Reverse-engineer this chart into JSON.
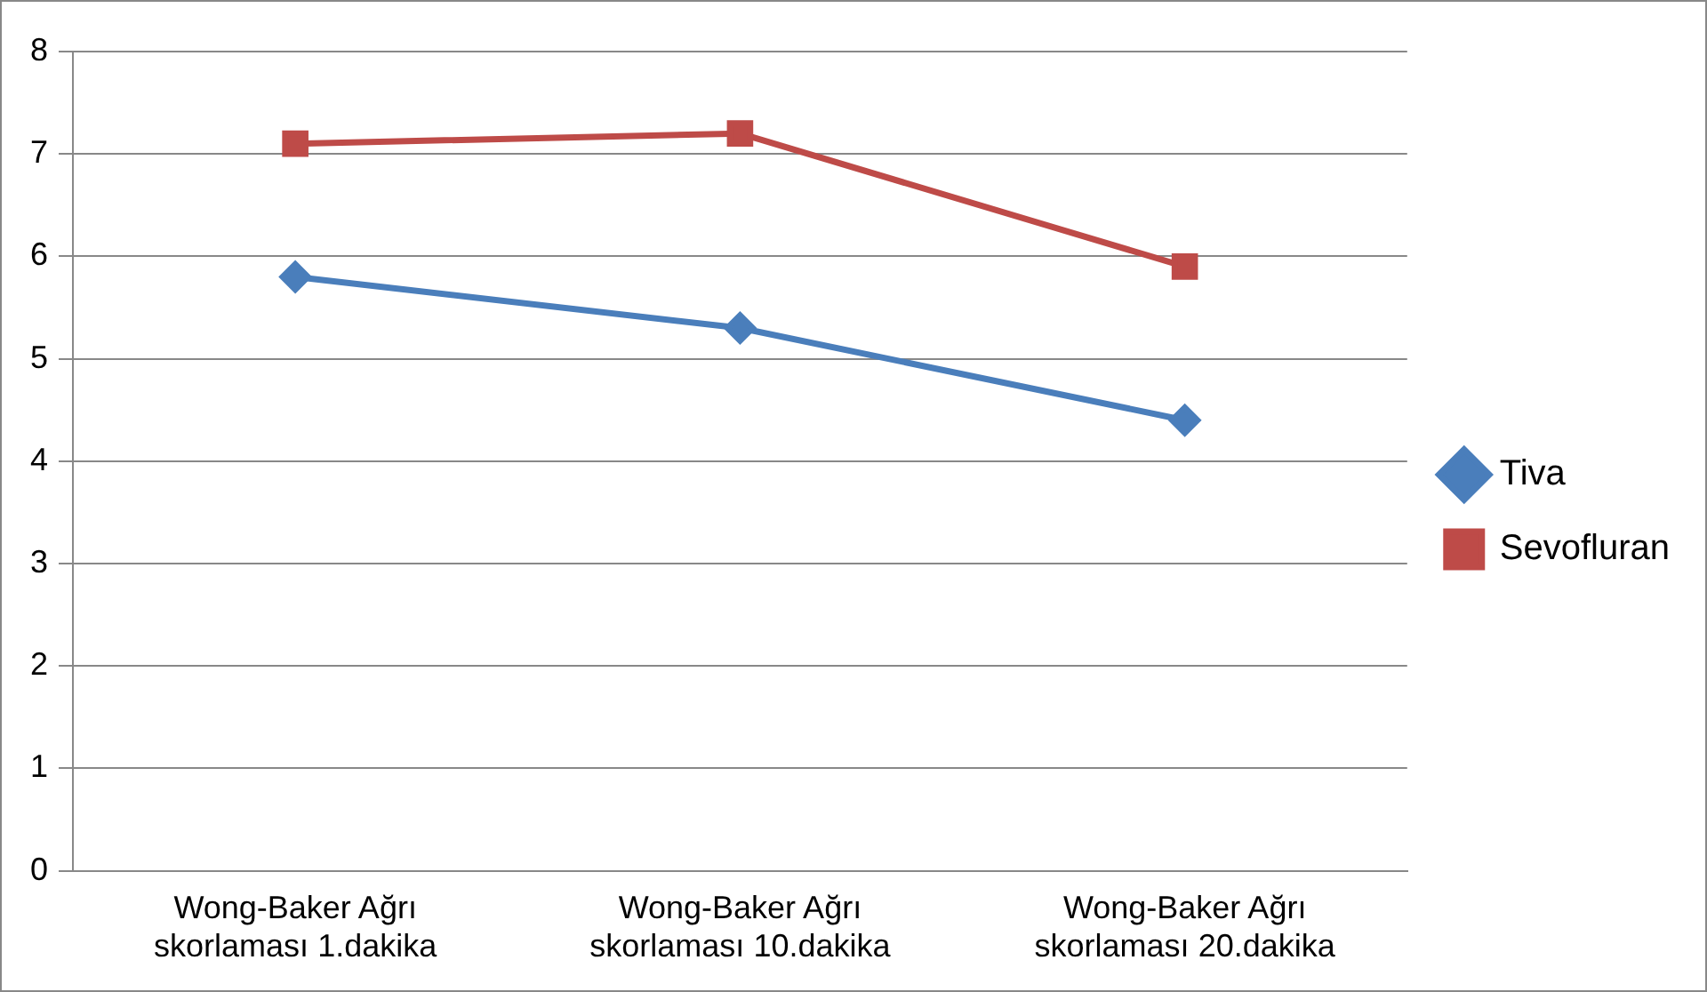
{
  "chart_data": {
    "type": "line",
    "categories": [
      "Wong-Baker Ağrı skorlaması 1.dakika",
      "Wong-Baker Ağrı skorlaması 10.dakika",
      "Wong-Baker Ağrı skorlaması 20.dakika"
    ],
    "series": [
      {
        "name": "Tiva",
        "color": "#4a7ebb",
        "marker": "diamond",
        "values": [
          5.8,
          5.3,
          4.4
        ]
      },
      {
        "name": "Sevofluran",
        "color": "#be4b48",
        "marker": "square",
        "values": [
          7.1,
          7.2,
          5.9
        ]
      }
    ],
    "ylim": [
      0,
      8
    ],
    "yticks": [
      0,
      1,
      2,
      3,
      4,
      5,
      6,
      7,
      8
    ],
    "grid": "y",
    "legend": "right",
    "line_style": "solid"
  }
}
